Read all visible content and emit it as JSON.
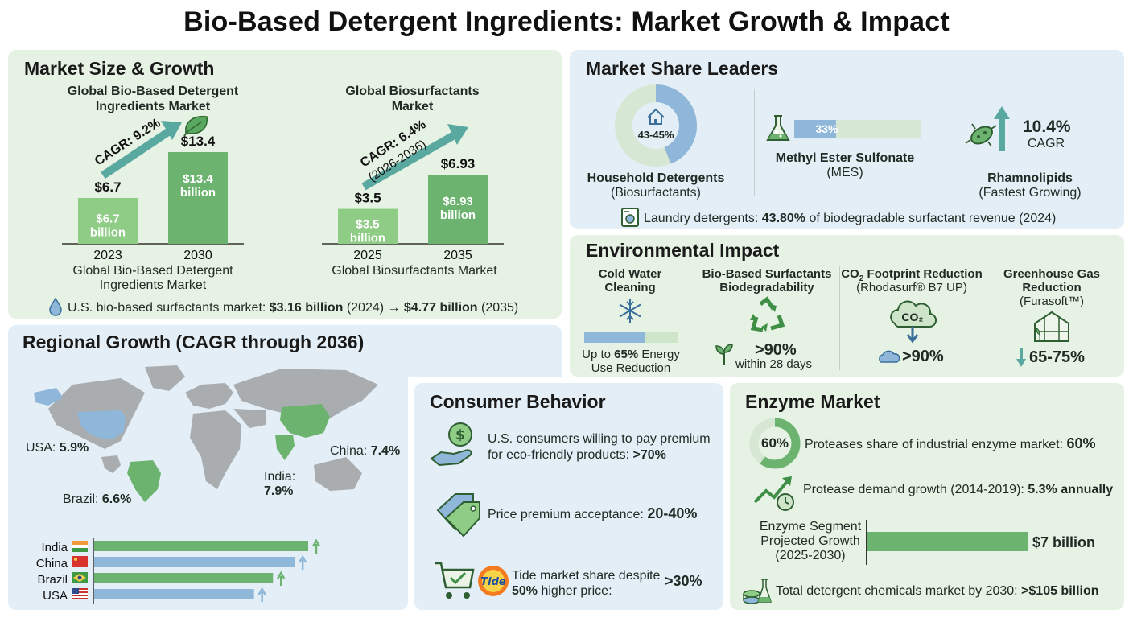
{
  "title": "Bio-Based Detergent Ingredients: Market Growth & Impact",
  "colors": {
    "green": "#6cb36f",
    "light_green": "#8fcc85",
    "blue": "#8fb7d9",
    "green_panel": "#e6f2e3",
    "blue_panel": "#e4eef6"
  },
  "market_size": {
    "title": "Market Size & Growth",
    "left_title": "Global Bio-Based Detergent Ingredients Market",
    "left_cagr": "CAGR: 9.2%",
    "left_caption": "Global Bio-Based Detergent Ingredients Market",
    "right_title": "Global Biosurfactants Market",
    "right_cagr": "CAGR: 6.4%",
    "right_cagr_sub": "(2026-2036)",
    "right_caption": "Global Biosurfactants Market",
    "us_prefix": "U.S. bio-based surfactants market: ",
    "us_v1": "$3.16 billion",
    "us_y1": " (2024) → ",
    "us_v2": "$4.77 billion",
    "us_y2": " (2035)",
    "leaf_icon": "leaf-icon",
    "drop_icon": "water-drop-icon"
  },
  "chart_data": [
    {
      "type": "bar",
      "title": "Global Bio-Based Detergent Ingredients Market",
      "categories": [
        "2023",
        "2030"
      ],
      "values": [
        6.7,
        13.4
      ],
      "value_labels": [
        "$6.7",
        "$13.4"
      ],
      "bar_labels": [
        "$6.7 billion",
        "$13.4 billion"
      ],
      "annotation": "CAGR: 9.2%",
      "xlabel": "Global Bio-Based Detergent Ingredients Market"
    },
    {
      "type": "bar",
      "title": "Global Biosurfactants Market",
      "categories": [
        "2025",
        "2035"
      ],
      "values": [
        3.5,
        6.93
      ],
      "value_labels": [
        "$3.5",
        "$6.93"
      ],
      "bar_labels": [
        "$3.5 billion",
        "$6.93 billion"
      ],
      "annotation": "CAGR: 6.4% (2026-2036)",
      "xlabel": "Global Biosurfactants Market"
    },
    {
      "type": "bar",
      "title": "Regional Growth (CAGR through 2036)",
      "categories": [
        "India",
        "China",
        "Brazil",
        "USA"
      ],
      "values": [
        7.9,
        7.4,
        6.6,
        5.9
      ],
      "orientation": "horizontal"
    }
  ],
  "share": {
    "title": "Market Share Leaders",
    "donut_value": "43-45%",
    "donut_fraction": 0.44,
    "household_label": "Household Detergents",
    "household_sub": "(Biosurfactants)",
    "mes_value": "33%",
    "mes_fraction": 0.33,
    "mes_label": "Methyl Ester Sulfonate",
    "mes_sub": "(MES)",
    "rham_value": "10.4%",
    "rham_cagr": "CAGR",
    "rham_label": "Rhamnolipids",
    "rham_sub": "(Fastest Growing)",
    "laundry_prefix": "Laundry detergents: ",
    "laundry_value": "43.80%",
    "laundry_suffix": " of biodegradable surfactant revenue (2024)"
  },
  "env": {
    "title": "Environmental Impact",
    "col1_title": "Cold Water Cleaning",
    "col1_prefix": "Up to ",
    "col1_value": "65%",
    "col1_suffix": " Energy Use Reduction",
    "col1_fraction": 0.65,
    "col2_title": "Bio-Based Surfactants Biodegradability",
    "col2_value": ">90%",
    "col2_sub": "within 28 days",
    "col3_title_a": "CO",
    "col3_title_sub": "2",
    "col3_title_b": " Footprint Reduction",
    "col3_sub": "(Rhodasurf® B7 UP)",
    "col3_cloud": "CO₂",
    "col3_value": ">90%",
    "col4_title": "Greenhouse Gas Reduction",
    "col4_sub": "(Furasoft™)",
    "col4_value": "65-75%"
  },
  "regional": {
    "title": "Regional Growth (CAGR through 2036)",
    "usa": "USA: ",
    "usa_v": "5.9%",
    "brazil": "Brazil: ",
    "brazil_v": "6.6%",
    "india": "India:",
    "india_v": "7.9%",
    "china": "China: ",
    "china_v": "7.4%"
  },
  "consumer": {
    "title": "Consumer Behavior",
    "item1_a": "U.S. consumers willing to pay premium for eco-friendly products: ",
    "item1_v": ">70%",
    "item2_a": "Price premium acceptance: ",
    "item2_v": "20-40%",
    "item3_a": "Tide market share despite ",
    "item3_b": "50%",
    "item3_c": " higher price:",
    "item3_v": ">30%",
    "tide_logo": "Tide"
  },
  "enzyme": {
    "title": "Enzyme Market",
    "donut_value": "60%",
    "donut_fraction": 0.6,
    "proteases_a": "Proteases share of industrial enzyme market: ",
    "proteases_v": "60%",
    "demand_a": "Protease demand growth (2014-2019): ",
    "demand_v": "5.3% annually",
    "segment_label": "Enzyme Segment Projected Growth (2025-2030)",
    "segment_value": "$7 billion",
    "total_a": "Total detergent chemicals market by 2030: ",
    "total_v": ">$105 billion"
  }
}
